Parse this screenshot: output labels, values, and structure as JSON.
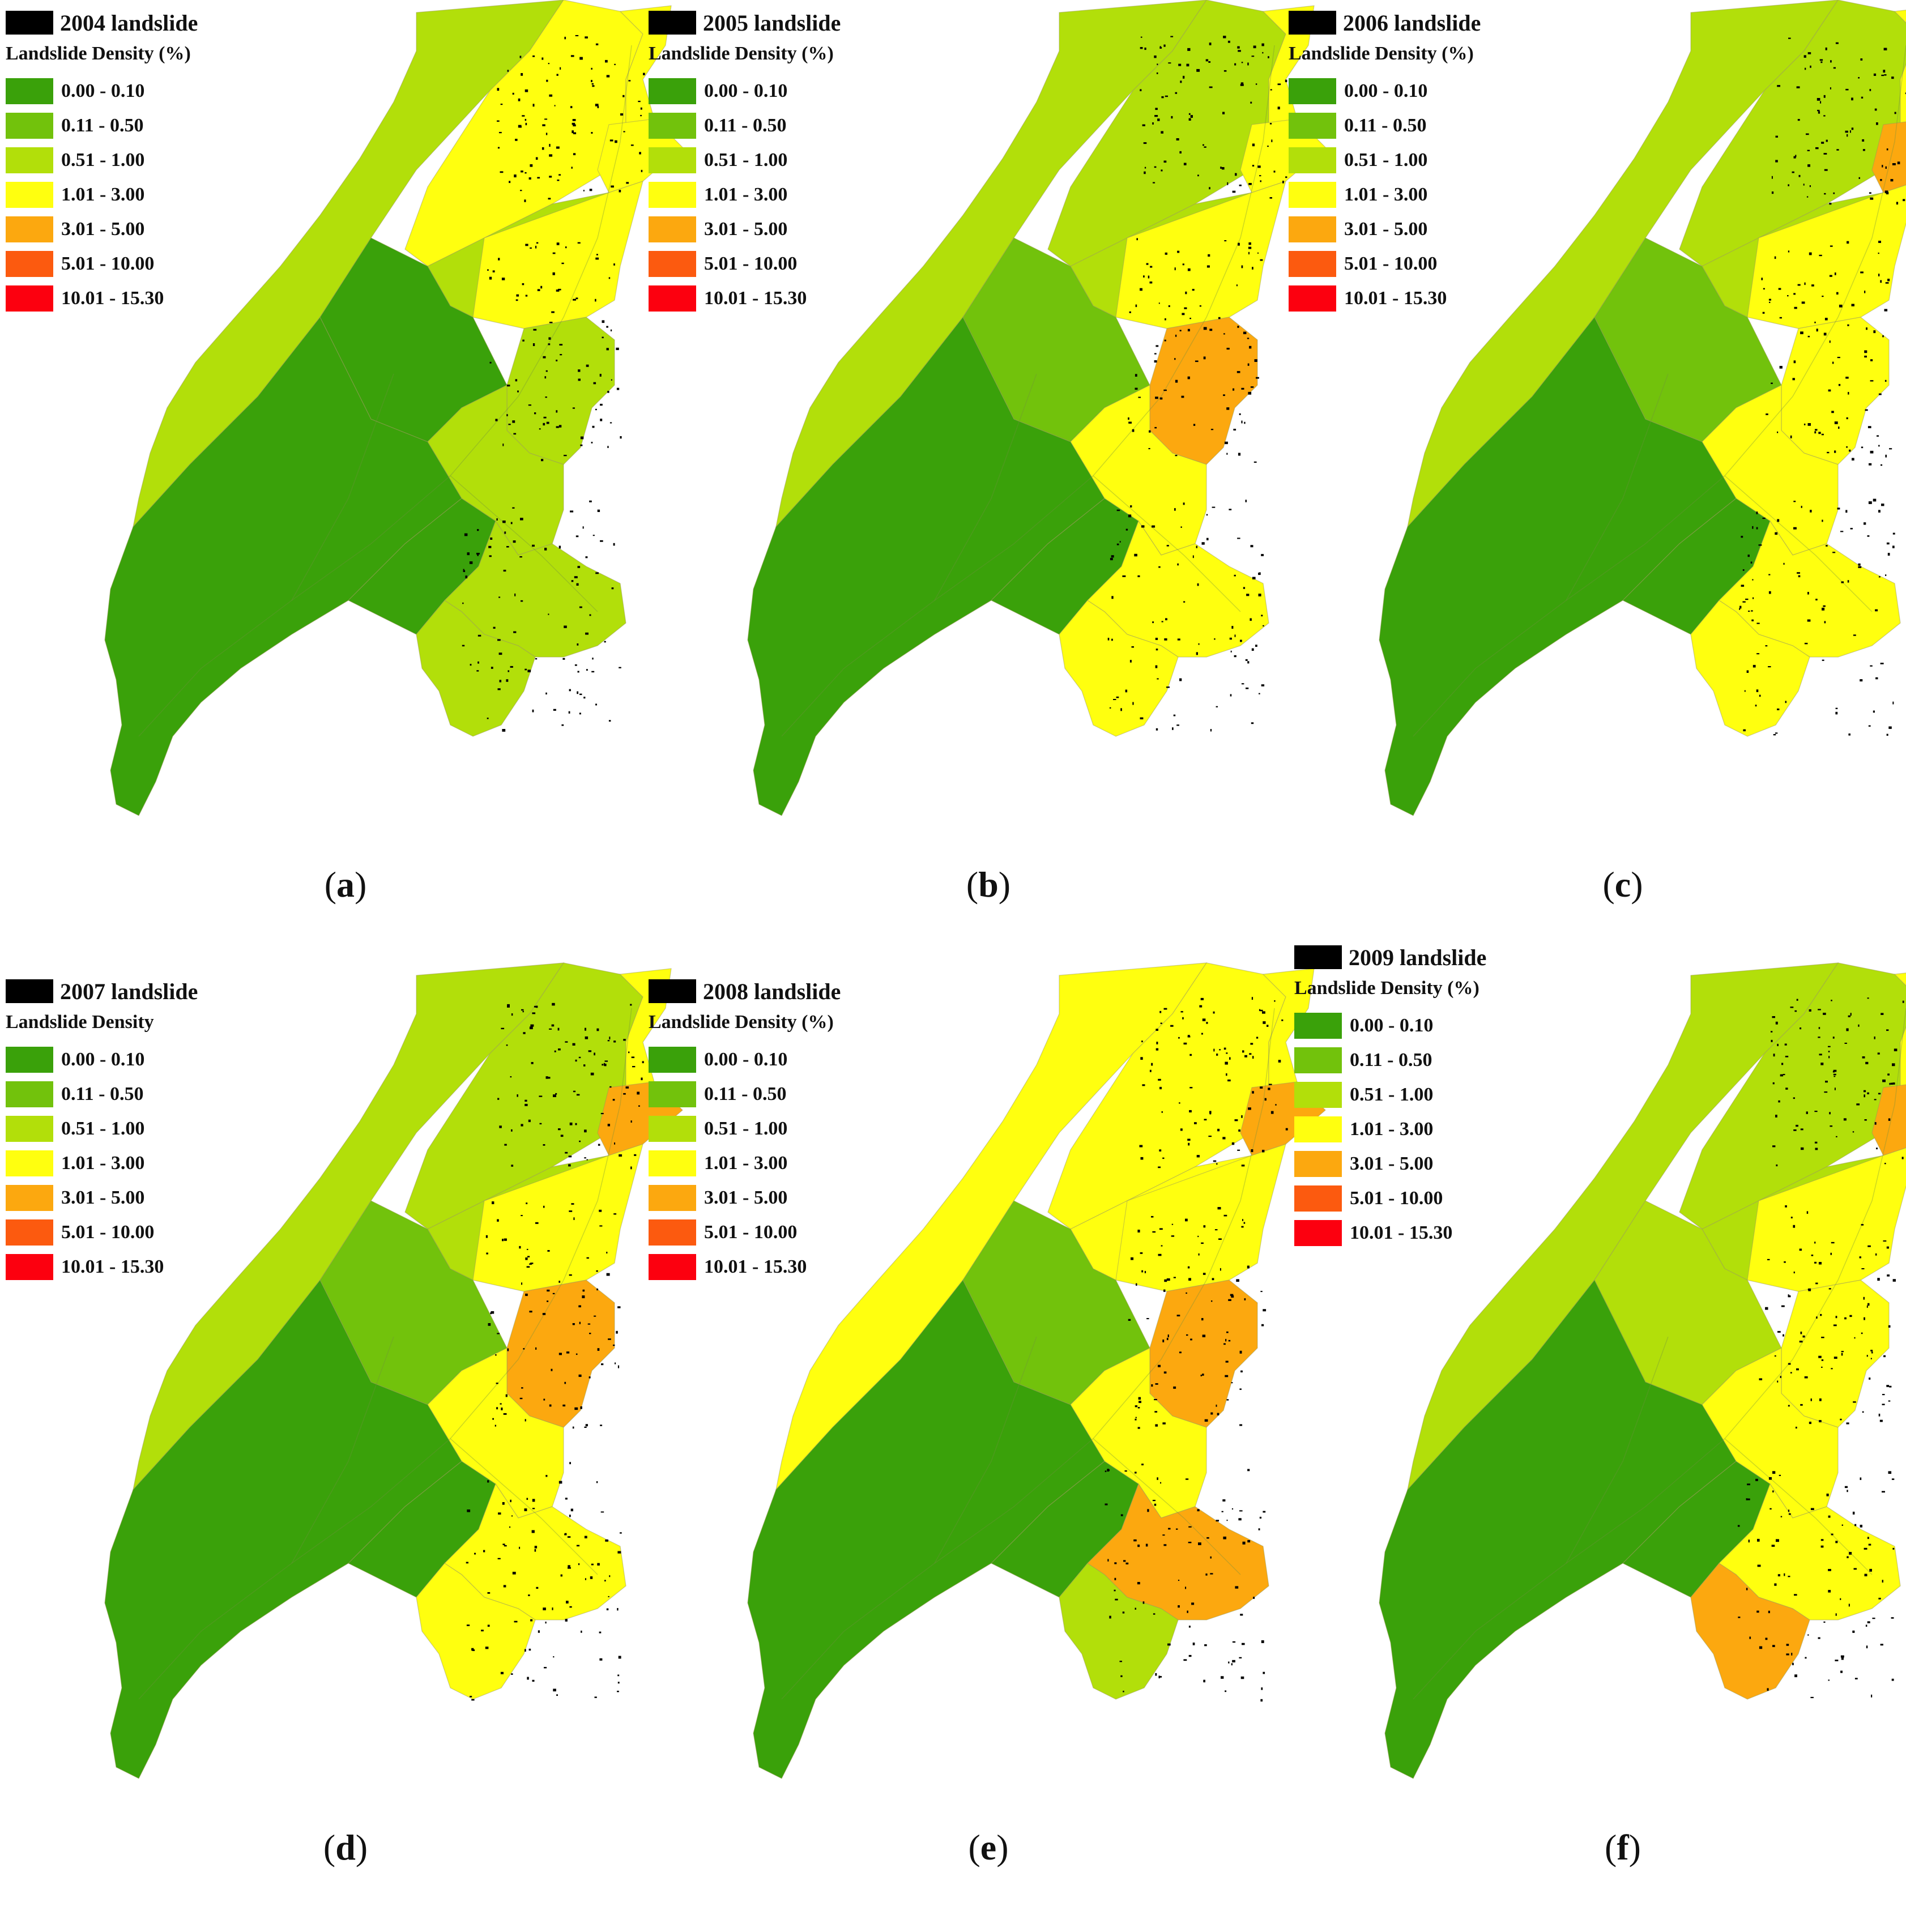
{
  "colors": {
    "class_0": "#3aa10a",
    "class_1": "#72c20c",
    "class_2": "#b2df0a",
    "class_3": "#ffff0f",
    "class_4": "#fca80f",
    "class_5": "#fc5a0f",
    "class_6": "#fc000f",
    "landslide": "#000000"
  },
  "legend_classes": [
    "0.00 - 0.10",
    "0.11 - 0.50",
    "0.51 - 1.00",
    "1.01 - 3.00",
    "3.01 - 5.00",
    "5.01 - 10.00",
    "10.01 - 15.30"
  ],
  "panels": [
    {
      "id": "a",
      "caption": "a",
      "title": "2004 landslide",
      "subtitle": "Landslide Density (%)",
      "zone_classes": {
        "NW": 2,
        "N": 3,
        "NE": 3,
        "NE2": 3,
        "W": 2,
        "C": 2,
        "CN": 3,
        "CE": 2,
        "CW": 0,
        "S": 0,
        "SE": 2,
        "SE2": 2,
        "SW": 0
      }
    },
    {
      "id": "b",
      "caption": "b",
      "title": "2005 landslide",
      "subtitle": "Landslide Density (%)",
      "zone_classes": {
        "NW": 2,
        "N": 2,
        "NE": 3,
        "NE2": 3,
        "W": 2,
        "C": 3,
        "CN": 3,
        "CE": 4,
        "CW": 1,
        "S": 0,
        "SE": 3,
        "SE2": 3,
        "SW": 0
      }
    },
    {
      "id": "c",
      "caption": "c",
      "title": "2006 landslide",
      "subtitle": "Landslide Density (%)",
      "zone_classes": {
        "NW": 2,
        "N": 2,
        "NE": 3,
        "NE2": 4,
        "W": 2,
        "C": 3,
        "CN": 3,
        "CE": 3,
        "CW": 1,
        "S": 0,
        "SE": 3,
        "SE2": 3,
        "SW": 0
      }
    },
    {
      "id": "d",
      "caption": "d",
      "title": "2007 landslide",
      "subtitle": "Landslide Density",
      "zone_classes": {
        "NW": 2,
        "N": 2,
        "NE": 3,
        "NE2": 4,
        "W": 2,
        "C": 3,
        "CN": 3,
        "CE": 4,
        "CW": 1,
        "S": 0,
        "SE": 3,
        "SE2": 3,
        "SW": 0
      }
    },
    {
      "id": "e",
      "caption": "e",
      "title": "2008 landslide",
      "subtitle": "Landslide Density (%)",
      "zone_classes": {
        "NW": 3,
        "N": 3,
        "NE": 3,
        "NE2": 4,
        "W": 3,
        "C": 3,
        "CN": 3,
        "CE": 4,
        "CW": 1,
        "S": 0,
        "SE": 4,
        "SE2": 2,
        "SW": 0
      }
    },
    {
      "id": "f",
      "caption": "f",
      "title": "2009 landslide",
      "subtitle": "Landslide Density (%)",
      "zone_classes": {
        "NW": 2,
        "N": 2,
        "NE": 3,
        "NE2": 4,
        "W": 2,
        "C": 3,
        "CN": 3,
        "CE": 3,
        "CW": 2,
        "S": 0,
        "SE": 3,
        "SE2": 4,
        "SW": 0
      }
    }
  ]
}
